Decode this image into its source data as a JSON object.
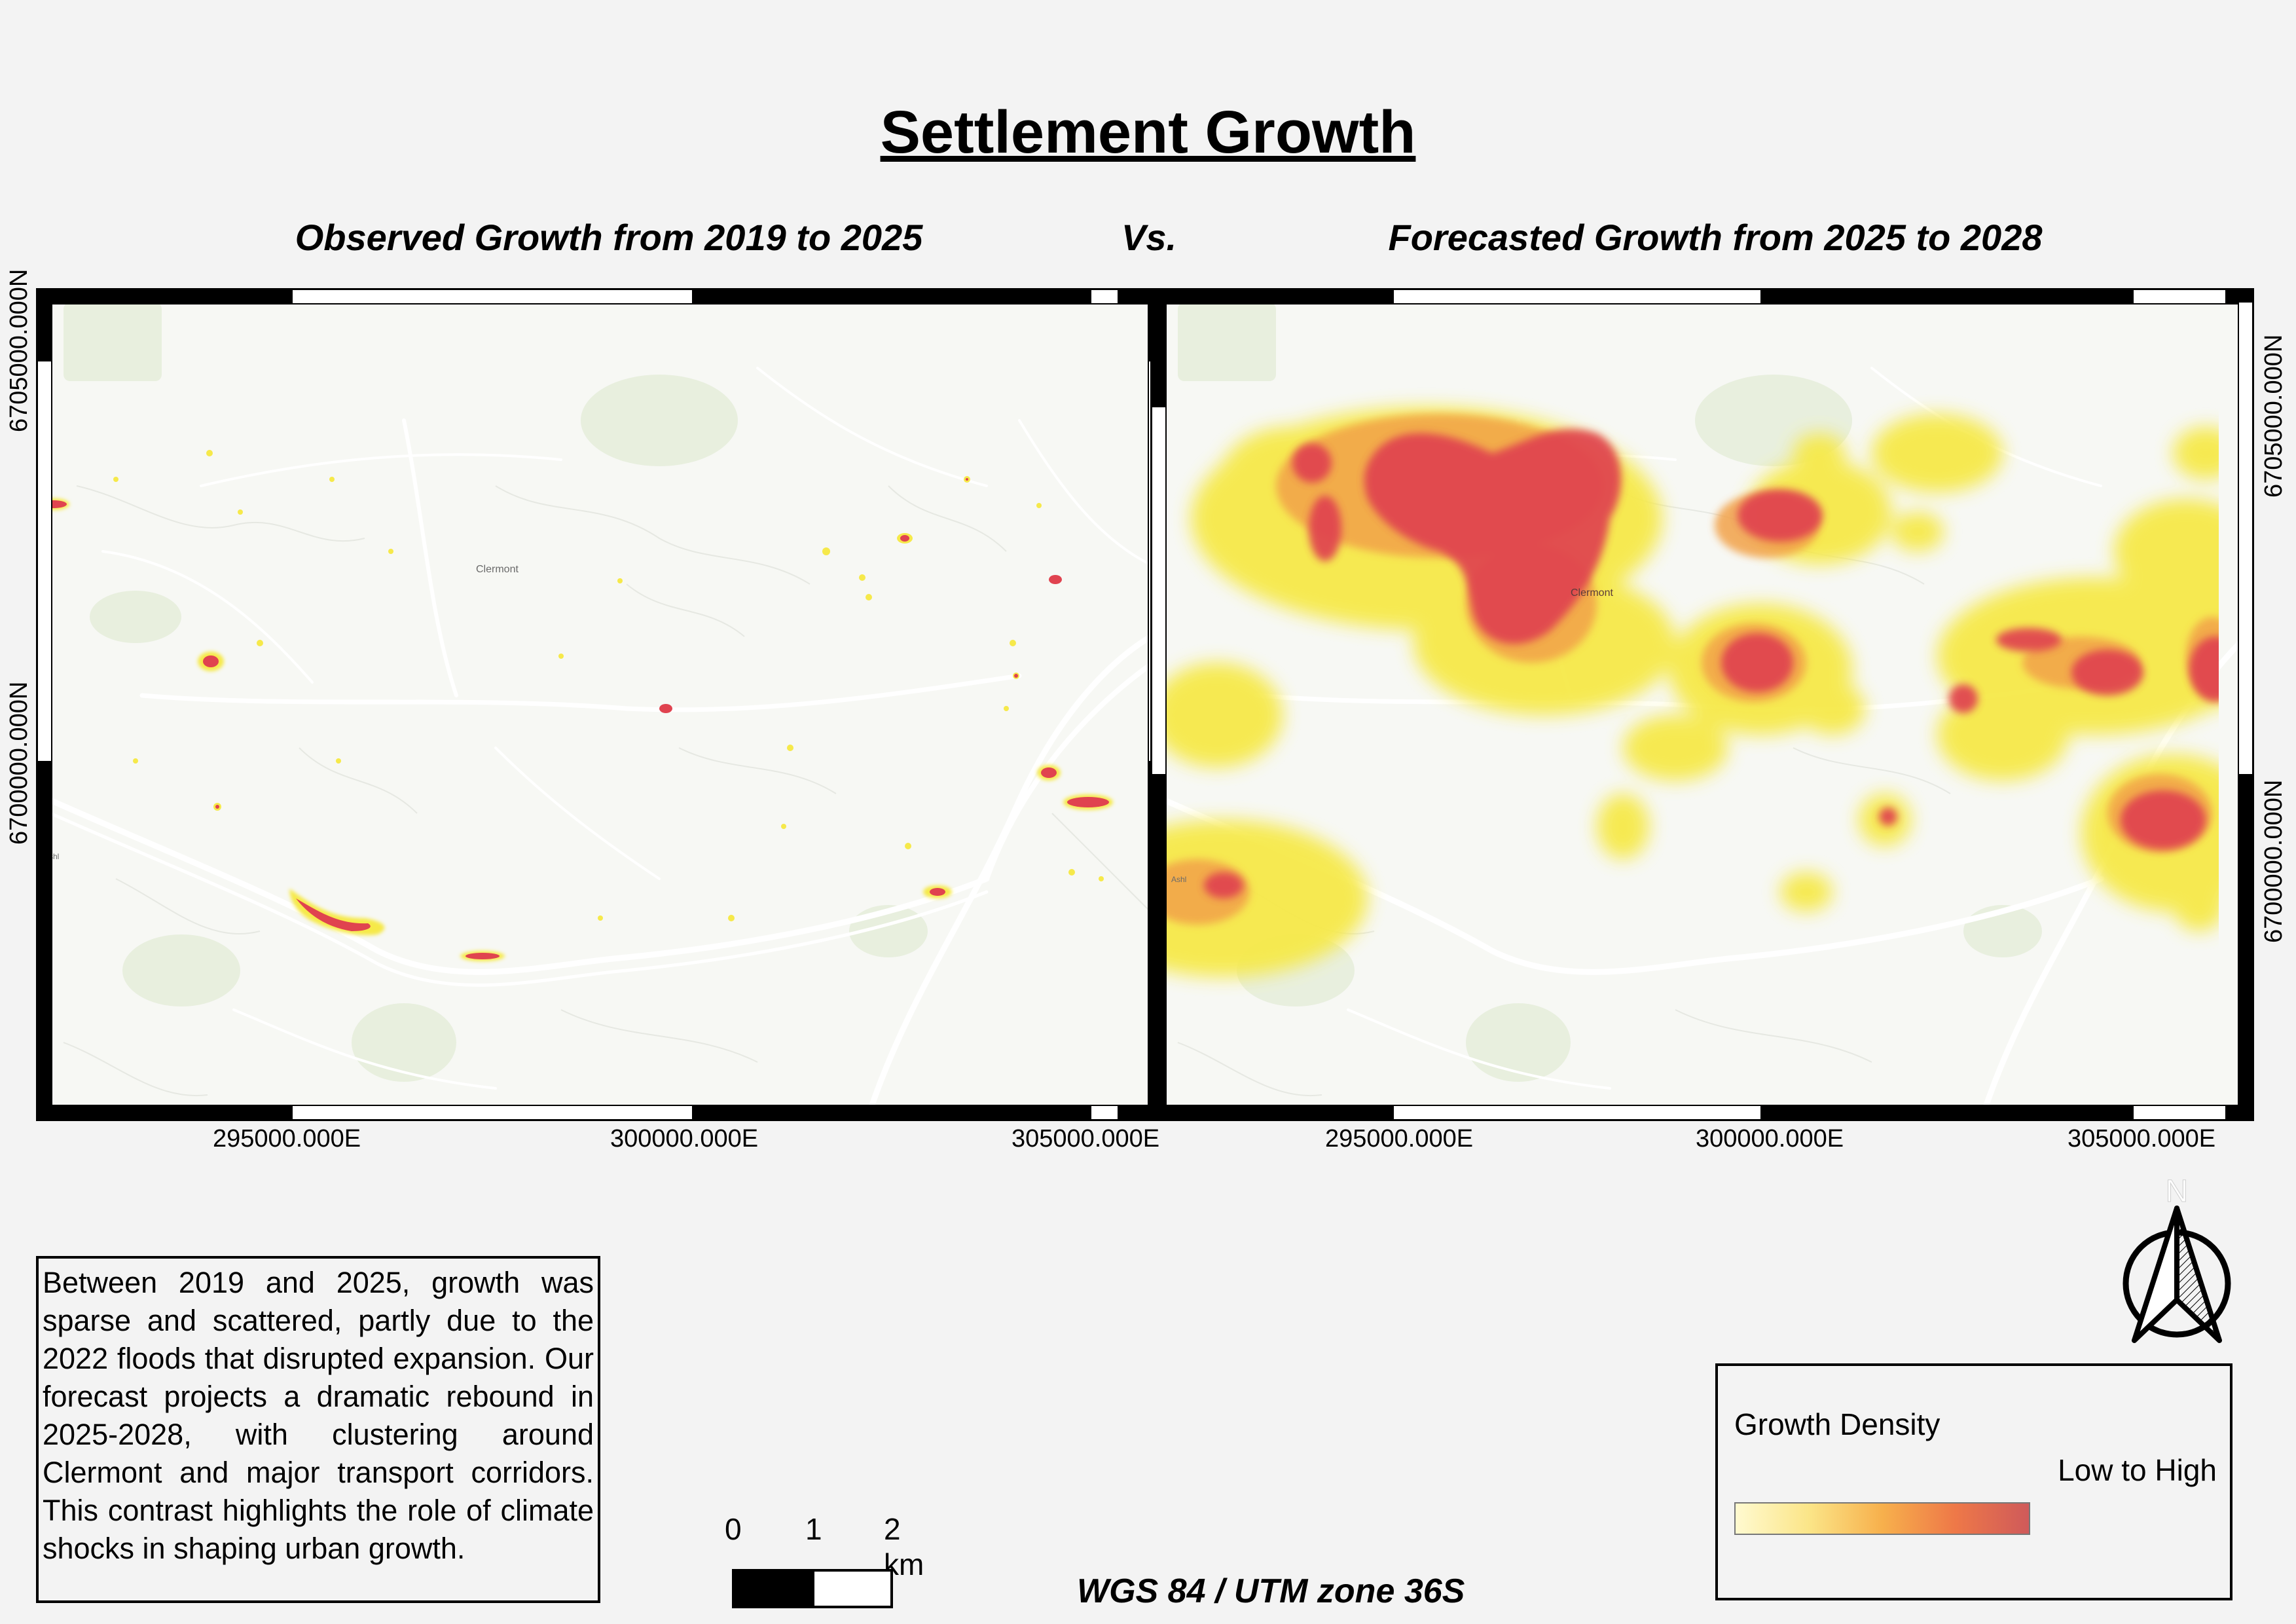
{
  "title": "Settlement Growth",
  "subtitles": {
    "observed": "Observed Growth from 2019 to 2025",
    "vs": "Vs.",
    "forecast": "Forecasted Growth from 2025 to 2028"
  },
  "maps": {
    "grid_labels_x": [
      "295000.000E",
      "300000.000E",
      "305000.000E"
    ],
    "grid_labels_y": [
      "6705000.000N",
      "6700000.000N"
    ],
    "place_labels": [
      "Clermont",
      "Ashl"
    ]
  },
  "description": "Between 2019 and 2025, growth was sparse and scattered, partly due to the 2022 floods that disrupted expansion. Our forecast projects a dramatic rebound in 2025-2028, with clustering around Clermont and major transport corridors. This contrast highlights the role of climate shocks in shaping urban growth.",
  "scalebar": {
    "labels": [
      "0",
      "1",
      "2 km"
    ]
  },
  "crs": "WGS 84 / UTM zone 36S",
  "north_arrow": {
    "label": "N"
  },
  "legend": {
    "title": "Growth Density",
    "range": "Low to High",
    "colors": [
      "#fffad0",
      "#fbe588",
      "#f7b04c",
      "#ee7848",
      "#cf5a5a"
    ]
  },
  "colors": {
    "hotspot": "#e0434f",
    "warm": "#f6e94a",
    "road": "#ffffff",
    "basemap": "#f7f8f4"
  }
}
